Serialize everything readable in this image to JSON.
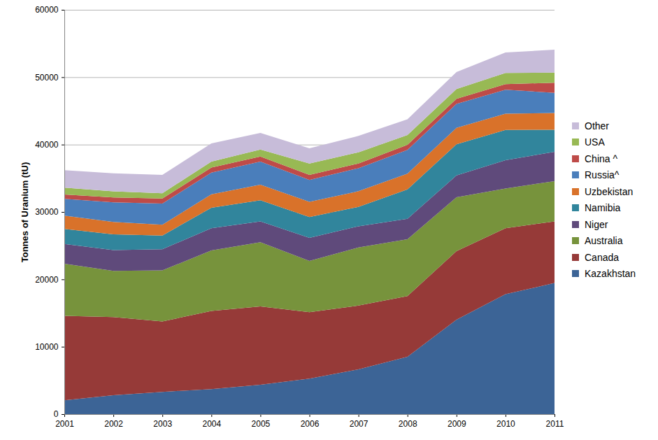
{
  "chart_data": {
    "type": "area",
    "stacked": true,
    "grid": true,
    "legend": "right",
    "y_label": "Tonnes of Uranium (tU)",
    "x": [
      2001,
      2002,
      2003,
      2004,
      2005,
      2006,
      2007,
      2008,
      2009,
      2010,
      2011
    ],
    "xlim": [
      2001,
      2011
    ],
    "xticks": [
      2001,
      2002,
      2003,
      2004,
      2005,
      2006,
      2007,
      2008,
      2009,
      2010,
      2011
    ],
    "ylim": [
      0,
      60000
    ],
    "yticks": [
      0,
      10000,
      20000,
      30000,
      40000,
      50000,
      60000
    ],
    "series": [
      {
        "name": "Kazakhstan",
        "color": "#3c6496",
        "values": [
          2050,
          2800,
          3300,
          3719,
          4357,
          5279,
          6637,
          8521,
          14020,
          17803,
          19451
        ]
      },
      {
        "name": "Canada",
        "color": "#963a38",
        "values": [
          12522,
          11604,
          10457,
          11597,
          11628,
          9862,
          9476,
          9000,
          10173,
          9783,
          9145
        ]
      },
      {
        "name": "Australia",
        "color": "#77933c",
        "values": [
          7756,
          6854,
          7572,
          8982,
          9516,
          7593,
          8611,
          8430,
          7982,
          5900,
          5983
        ]
      },
      {
        "name": "Niger",
        "color": "#5f4a7b",
        "values": [
          2920,
          3075,
          3143,
          3282,
          3093,
          3434,
          3153,
          3032,
          3243,
          4198,
          4351
        ]
      },
      {
        "name": "Namibia",
        "color": "#31859c",
        "values": [
          2239,
          2333,
          2036,
          3038,
          3147,
          3067,
          2879,
          4366,
          4626,
          4496,
          3258
        ]
      },
      {
        "name": "Uzbekistan",
        "color": "#d9722a",
        "values": [
          1962,
          1860,
          1598,
          2016,
          2300,
          2260,
          2320,
          2338,
          2429,
          2400,
          2500
        ]
      },
      {
        "name": "Russia^",
        "color": "#4a7ebb",
        "values": [
          2500,
          2900,
          3150,
          3200,
          3431,
          3262,
          3413,
          3521,
          3564,
          3562,
          2993
        ]
      },
      {
        "name": "China ^",
        "color": "#be4b48",
        "values": [
          655,
          730,
          750,
          750,
          750,
          750,
          712,
          769,
          750,
          827,
          1500
        ]
      },
      {
        "name": "USA",
        "color": "#98b954",
        "values": [
          1011,
          919,
          779,
          878,
          1039,
          1672,
          1654,
          1430,
          1453,
          1660,
          1500
        ]
      },
      {
        "name": "Other",
        "color": "#c7bcd9",
        "values": [
          2600,
          2650,
          2707,
          2716,
          2458,
          2265,
          2427,
          2357,
          2532,
          3034,
          3400
        ]
      }
    ]
  }
}
